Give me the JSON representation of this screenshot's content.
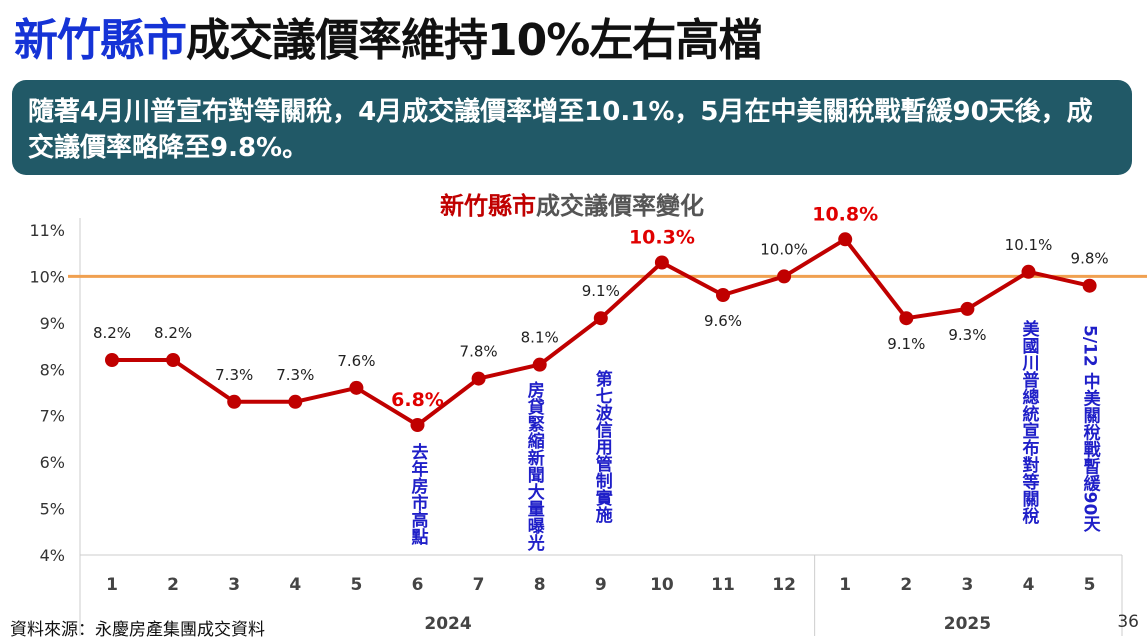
{
  "page_title": {
    "highlight": "新竹縣市",
    "rest": "成交議價率維持10%左右高檔"
  },
  "banner_text": "隨著4月川普宣布對等關稅，4月成交議價率增至10.1%，5月在中美關稅戰暫緩90天後，成交議價率略降至9.8%。",
  "source_note": "資料來源：永慶房產集團成交資料",
  "page_number": "36",
  "chart_data": {
    "type": "line",
    "title": {
      "highlight": "新竹縣市",
      "rest": "成交議價率變化"
    },
    "categories": [
      "1",
      "2",
      "3",
      "4",
      "5",
      "6",
      "7",
      "8",
      "9",
      "10",
      "11",
      "12",
      "1",
      "2",
      "3",
      "4",
      "5"
    ],
    "year_groups": [
      {
        "label": "2024",
        "count": 12
      },
      {
        "label": "2025",
        "count": 5
      }
    ],
    "series": [
      {
        "values": [
          8.2,
          8.2,
          7.3,
          7.3,
          7.6,
          6.8,
          7.8,
          8.1,
          9.1,
          10.3,
          9.6,
          10.0,
          10.8,
          9.1,
          9.3,
          10.1,
          9.8
        ]
      }
    ],
    "data_labels": [
      "8.2%",
      "8.2%",
      "7.3%",
      "7.3%",
      "7.6%",
      "6.8%",
      "7.8%",
      "8.1%",
      "9.1%",
      "10.3%",
      "9.6%",
      "10.0%",
      "10.8%",
      "9.1%",
      "9.3%",
      "10.1%",
      "9.8%"
    ],
    "highlighted_indices": [
      5,
      9,
      12
    ],
    "ylim": [
      4,
      11
    ],
    "yticks": [
      "4%",
      "5%",
      "6%",
      "7%",
      "8%",
      "9%",
      "10%",
      "11%"
    ],
    "reference_line": {
      "value": 10,
      "color": "#f0a050"
    },
    "line_color": "#c00000",
    "highlight_label_color": "#e00000",
    "annotation_color": "#1f1fc8",
    "annotations": [
      {
        "index": 5,
        "text": "去年房市高點"
      },
      {
        "index": 7,
        "text": "房貸緊縮新聞大量曝光"
      },
      {
        "index": 8,
        "text": "第七波信用管制實施"
      },
      {
        "index": 15,
        "text": "美國川普總統宣布對等關稅"
      },
      {
        "index": 16,
        "text": "5/12 中美關稅戰暫緩90天"
      }
    ]
  }
}
